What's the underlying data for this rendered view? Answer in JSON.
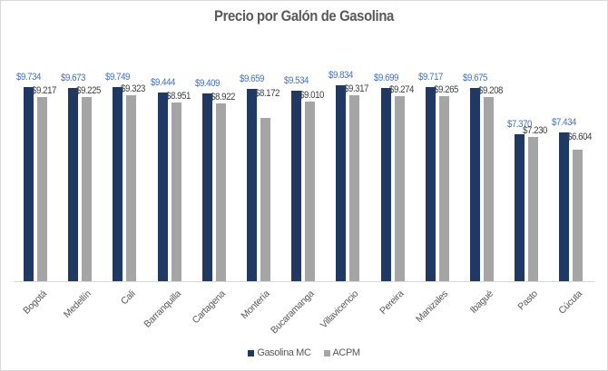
{
  "chart_data": {
    "type": "bar",
    "title": "Precio por Galón de Gasolina",
    "xlabel": "",
    "ylabel": "",
    "ylim": [
      0,
      14
    ],
    "grid": false,
    "legend_position": "bottom",
    "categories": [
      "Bogotá",
      "Medellín",
      "Cali",
      "Barranquilla",
      "Cartagena",
      "Montería",
      "Bucaramanga",
      "Villavicencio",
      "Pereira",
      "Manizales",
      "Ibagué",
      "Pasto",
      "Cúcuta"
    ],
    "series": [
      {
        "name": "Gasolina MC",
        "color": "#1f3864",
        "label_color": "#4472c4",
        "values": [
          9.734,
          9.673,
          9.749,
          9.444,
          9.409,
          9.659,
          9.534,
          9.834,
          9.699,
          9.717,
          9.675,
          7.37,
          7.434
        ],
        "labels": [
          "$9.734",
          "$9.673",
          "$9.749",
          "$9.444",
          "$9.409",
          "$9.659",
          "$9.534",
          "$9.834",
          "$9.699",
          "$9.717",
          "$9.675",
          "$7.370",
          "$7.434"
        ]
      },
      {
        "name": "ACPM",
        "color": "#a5a5a5",
        "label_color": "#404040",
        "values": [
          9.217,
          9.225,
          9.323,
          8.951,
          8.922,
          8.172,
          9.01,
          9.317,
          9.274,
          9.265,
          9.208,
          7.23,
          6.604
        ],
        "labels": [
          "$9.217",
          "$9.225",
          "$9.323",
          "$8.951",
          "$8.922",
          "$8.172",
          "$9.010",
          "$9.317",
          "$9.274",
          "$9.265",
          "$9.208",
          "$7.230",
          "$6.604"
        ]
      }
    ]
  },
  "legend": {
    "items": [
      {
        "label": "Gasolina MC",
        "color": "#1f3864"
      },
      {
        "label": "ACPM",
        "color": "#a5a5a5"
      }
    ]
  }
}
